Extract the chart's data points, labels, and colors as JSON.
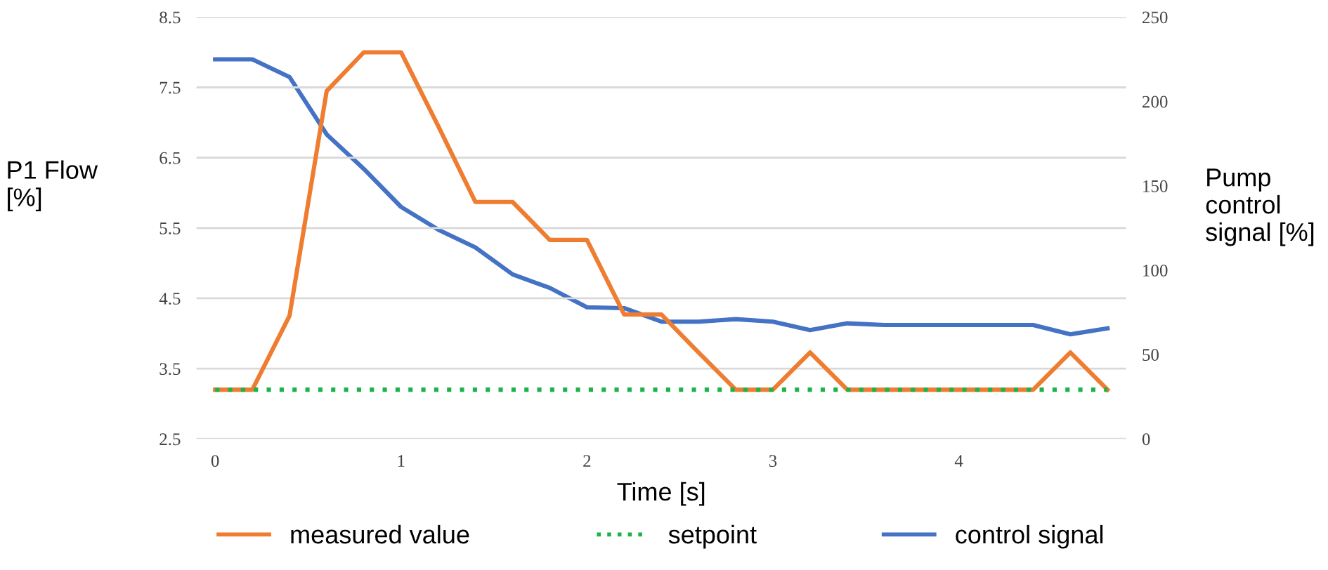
{
  "chart_data": {
    "type": "line",
    "xlabel": "Time [s]",
    "ylabel": "P1 Flow\n[%]",
    "y2label": "Pump\ncontrol\nsignal [%]",
    "x": [
      0,
      0.2,
      0.4,
      0.6,
      0.8,
      1.0,
      1.2,
      1.4,
      1.6,
      1.8,
      2.0,
      2.2,
      2.4,
      2.6,
      2.8,
      3.0,
      3.2,
      3.4,
      3.6,
      3.8,
      4.0,
      4.2,
      4.4,
      4.6,
      4.8
    ],
    "series": [
      {
        "name": "measured value",
        "color": "#ef7d31",
        "line_style": "solid",
        "values": [
          3.2,
          3.2,
          4.25,
          7.45,
          8.0,
          8.0,
          6.95,
          5.87,
          5.87,
          5.33,
          5.33,
          4.27,
          4.27,
          3.73,
          3.2,
          3.2,
          3.73,
          3.2,
          3.2,
          3.2,
          3.2,
          3.2,
          3.2,
          3.73,
          3.2
        ]
      },
      {
        "name": "setpoint",
        "color": "#1fb24a",
        "line_style": "dotted",
        "values": [
          3.2,
          3.2,
          3.2,
          3.2,
          3.2,
          3.2,
          3.2,
          3.2,
          3.2,
          3.2,
          3.2,
          3.2,
          3.2,
          3.2,
          3.2,
          3.2,
          3.2,
          3.2,
          3.2,
          3.2,
          3.2,
          3.2,
          3.2,
          3.2,
          3.2
        ]
      },
      {
        "name": "control signal",
        "color": "#4472c4",
        "line_style": "solid",
        "axis": "y2",
        "values": [
          225,
          225,
          214.5,
          180.5,
          160,
          137.5,
          124,
          113.5,
          97.5,
          89.5,
          78,
          77.5,
          69.5,
          69.5,
          71,
          69.5,
          64.5,
          68.5,
          67.5,
          67.5,
          67.5,
          67.5,
          67.5,
          62,
          65.5
        ]
      }
    ],
    "xlim": [
      -0.1,
      4.9
    ],
    "xticks": [
      0,
      1,
      2,
      3,
      4
    ],
    "ylim": [
      2.5,
      8.5
    ],
    "yticks": [
      2.5,
      3.5,
      4.5,
      5.5,
      6.5,
      7.5,
      8.5
    ],
    "y2lim": [
      0,
      250
    ],
    "y2ticks": [
      0,
      50,
      100,
      150,
      200,
      250
    ],
    "grid": "y",
    "legend": "bottom",
    "marker": "none"
  }
}
